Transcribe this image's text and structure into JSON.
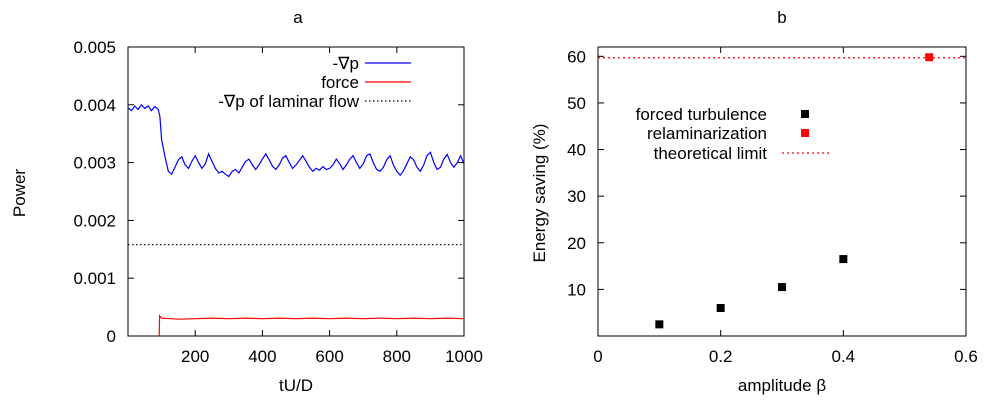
{
  "chart_data": [
    {
      "panel": "a",
      "type": "line",
      "xlabel": "tU/D",
      "ylabel": "Power",
      "xlim": [
        0,
        1000
      ],
      "ylim": [
        0,
        0.005
      ],
      "xticks": [
        "200",
        "400",
        "600",
        "800",
        "1000"
      ],
      "yticks": [
        "0",
        "0.001",
        "0.002",
        "0.003",
        "0.004",
        "0.005"
      ],
      "xtick_values": [
        200,
        400,
        600,
        800,
        1000
      ],
      "ytick_values": [
        0,
        0.001,
        0.002,
        0.003,
        0.004,
        0.005
      ],
      "legend_placement": "top-right",
      "colors": {
        "neg_grad_p": "#0000ff",
        "force": "#ff0000",
        "laminar": "#000000"
      },
      "series": [
        {
          "name": "-∇p",
          "x": [
            0,
            10,
            20,
            30,
            40,
            50,
            60,
            70,
            80,
            90,
            95,
            100,
            110,
            120,
            130,
            140,
            150,
            160,
            170,
            180,
            190,
            200,
            210,
            220,
            230,
            240,
            250,
            260,
            270,
            280,
            290,
            300,
            310,
            320,
            330,
            340,
            350,
            360,
            370,
            380,
            390,
            400,
            410,
            420,
            430,
            440,
            450,
            460,
            470,
            480,
            490,
            500,
            510,
            520,
            530,
            540,
            550,
            560,
            570,
            580,
            590,
            600,
            610,
            620,
            630,
            640,
            650,
            660,
            670,
            680,
            690,
            700,
            710,
            720,
            730,
            740,
            750,
            760,
            770,
            780,
            790,
            800,
            810,
            820,
            830,
            840,
            850,
            860,
            870,
            880,
            890,
            900,
            910,
            920,
            930,
            940,
            950,
            960,
            970,
            980,
            990,
            1000
          ],
          "values": [
            0.00395,
            0.0039,
            0.00398,
            0.00392,
            0.004,
            0.00394,
            0.00398,
            0.0039,
            0.00397,
            0.00392,
            0.0038,
            0.0034,
            0.0031,
            0.00285,
            0.0028,
            0.00292,
            0.00305,
            0.0031,
            0.00296,
            0.0029,
            0.00302,
            0.00312,
            0.003,
            0.0029,
            0.00298,
            0.00315,
            0.00302,
            0.0029,
            0.00282,
            0.00285,
            0.0028,
            0.00276,
            0.00285,
            0.00288,
            0.00282,
            0.00292,
            0.00302,
            0.00306,
            0.00296,
            0.00288,
            0.00296,
            0.00306,
            0.00315,
            0.00305,
            0.00294,
            0.00288,
            0.00296,
            0.00308,
            0.00312,
            0.003,
            0.0029,
            0.00296,
            0.00304,
            0.00312,
            0.00302,
            0.00292,
            0.00285,
            0.0029,
            0.00287,
            0.00293,
            0.00288,
            0.0029,
            0.00296,
            0.00306,
            0.00298,
            0.00288,
            0.00296,
            0.00306,
            0.00312,
            0.003,
            0.0029,
            0.00298,
            0.00312,
            0.00315,
            0.003,
            0.00288,
            0.00285,
            0.00292,
            0.00305,
            0.00312,
            0.00296,
            0.00285,
            0.00278,
            0.00286,
            0.00298,
            0.0031,
            0.00305,
            0.00292,
            0.00285,
            0.00296,
            0.00312,
            0.00318,
            0.003,
            0.00288,
            0.00292,
            0.00306,
            0.00314,
            0.003,
            0.00292,
            0.003,
            0.00312,
            0.00298
          ]
        },
        {
          "name": "force",
          "x": [
            93,
            94,
            100,
            150,
            200,
            250,
            300,
            350,
            400,
            450,
            500,
            550,
            600,
            650,
            700,
            750,
            800,
            850,
            900,
            950,
            1000
          ],
          "values": [
            0.0,
            0.00035,
            0.00031,
            0.00029,
            0.0003,
            0.00031,
            0.0003,
            0.00031,
            0.0003,
            0.00031,
            0.0003,
            0.00031,
            0.0003,
            0.00031,
            0.0003,
            0.00031,
            0.0003,
            0.00031,
            0.0003,
            0.00031,
            0.0003
          ]
        },
        {
          "name": "-∇p of laminar flow",
          "x": [
            0,
            1000
          ],
          "values": [
            0.00158,
            0.00158
          ]
        }
      ]
    },
    {
      "panel": "b",
      "type": "scatter",
      "xlabel": "amplitude β",
      "ylabel": "Energy saving (%)",
      "xlim": [
        0,
        0.6
      ],
      "ylim": [
        0,
        62
      ],
      "xticks": [
        "0",
        "0.2",
        "0.4",
        "0.6"
      ],
      "yticks": [
        "10",
        "20",
        "30",
        "40",
        "50",
        "60"
      ],
      "xtick_values": [
        0,
        0.2,
        0.4,
        0.6
      ],
      "ytick_values": [
        10,
        20,
        30,
        40,
        50,
        60
      ],
      "legend_placement": "center-left",
      "colors": {
        "forced": "#000000",
        "relam": "#ff0000",
        "limit": "#ff0000"
      },
      "series": [
        {
          "name": "forced turbulence",
          "x": [
            0.1,
            0.2,
            0.3,
            0.4
          ],
          "values": [
            2.5,
            6.0,
            10.5,
            16.5
          ]
        },
        {
          "name": "relaminarization",
          "x": [
            0.54
          ],
          "values": [
            59.8
          ]
        },
        {
          "name": "theoretical limit",
          "x": [
            0,
            0.6
          ],
          "values": [
            59.7,
            59.7
          ]
        }
      ]
    }
  ]
}
